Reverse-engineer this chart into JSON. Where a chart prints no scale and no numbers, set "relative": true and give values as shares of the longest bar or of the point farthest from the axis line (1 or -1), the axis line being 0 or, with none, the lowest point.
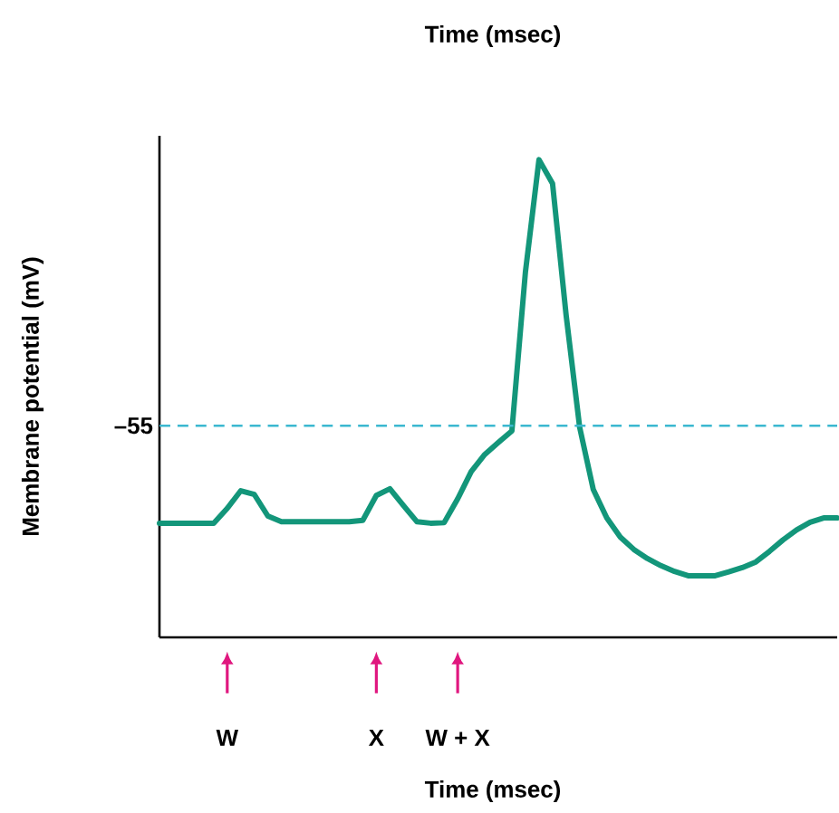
{
  "chart_data": {
    "type": "line",
    "relative": true,
    "title": "Time (msec)",
    "ylabel": "Membrane potential (mV)",
    "categories": [
      null,
      null,
      null,
      null,
      null,
      null,
      null,
      null,
      null,
      null,
      null,
      null,
      null,
      null,
      null,
      null,
      null,
      null,
      null,
      null,
      null,
      null,
      null,
      null,
      null,
      null,
      null,
      null,
      null,
      null,
      null,
      null,
      null,
      null,
      null,
      null,
      null,
      null,
      null,
      null,
      null,
      null,
      null,
      null,
      null,
      null,
      null,
      null,
      null,
      null,
      null
    ],
    "series": [
      {
        "color": "#13967a",
        "values": [
          0.239,
          0.239,
          0.239,
          0.239,
          0.239,
          0.27,
          0.307,
          0.299,
          0.254,
          0.242,
          0.242,
          0.242,
          0.242,
          0.242,
          0.242,
          0.245,
          0.297,
          0.311,
          0.276,
          0.242,
          0.239,
          0.24,
          0.29,
          0.347,
          0.383,
          0.408,
          0.432,
          0.765,
          1.0,
          0.95,
          0.675,
          0.44,
          0.31,
          0.25,
          0.21,
          0.184,
          0.165,
          0.15,
          0.138,
          0.129,
          0.129,
          0.129,
          0.137,
          0.146,
          0.158,
          0.18,
          0.204,
          0.225,
          0.241,
          0.25,
          0.25
        ]
      }
    ],
    "ref_lines": [
      {
        "axis": "y",
        "value": 0.443,
        "label": "–55",
        "color": "#3bb8d0",
        "line_style": "dashed"
      }
    ],
    "annotations": [
      "W",
      "X",
      "W + X",
      "Time (msec)"
    ],
    "marker": "none",
    "line_style": "solid"
  }
}
